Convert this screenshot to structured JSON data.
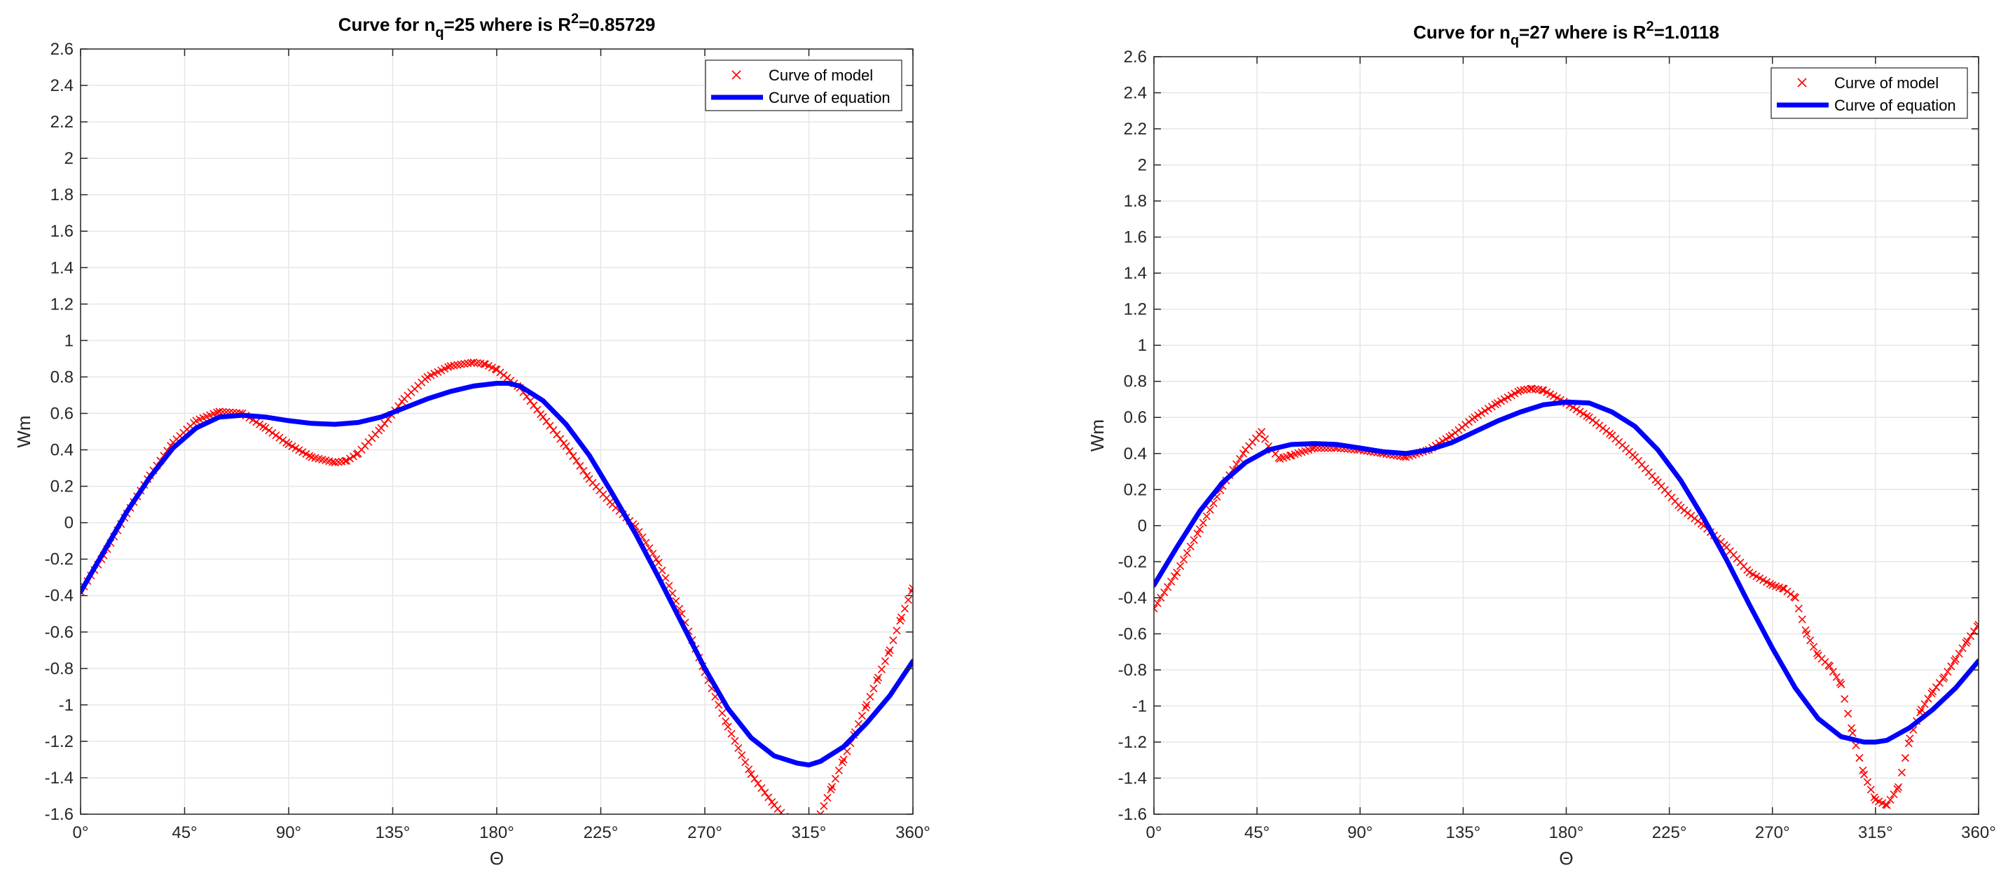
{
  "chart_data": [
    {
      "type": "line",
      "title_prefix": "Curve for n",
      "title_sub": "q",
      "title_mid": "=25 where is R",
      "title_sup": "2",
      "title_suffix": "=0.85729",
      "xlabel": "Θ",
      "ylabel": "Wm",
      "xlim": [
        0,
        360
      ],
      "ylim": [
        -1.6,
        2.6
      ],
      "xticks": [
        0,
        45,
        90,
        135,
        180,
        225,
        270,
        315,
        360
      ],
      "xtick_labels": [
        "0°",
        "45°",
        "90°",
        "135°",
        "180°",
        "225°",
        "270°",
        "315°",
        "360°"
      ],
      "yticks": [
        -1.6,
        -1.4,
        -1.2,
        -1,
        -0.8,
        -0.6,
        -0.4,
        -0.2,
        0,
        0.2,
        0.4,
        0.6,
        0.8,
        1,
        1.2,
        1.4,
        1.6,
        1.8,
        2,
        2.2,
        2.4,
        2.6
      ],
      "ytick_labels": [
        "-1.6",
        "-1.4",
        "-1.2",
        "-1",
        "-0.8",
        "-0.6",
        "-0.4",
        "-0.2",
        "0",
        "0.2",
        "0.4",
        "0.6",
        "0.8",
        "1",
        "1.2",
        "1.4",
        "1.6",
        "1.8",
        "2",
        "2.2",
        "2.4",
        "2.6"
      ],
      "grid": true,
      "legend_location": "top-right",
      "series": [
        {
          "name": "Curve of model",
          "style": "x-markers",
          "color": "#ff0000",
          "x": [
            0,
            10,
            20,
            30,
            40,
            50,
            60,
            70,
            80,
            90,
            100,
            110,
            115,
            120,
            130,
            140,
            150,
            160,
            170,
            175,
            180,
            190,
            200,
            210,
            220,
            230,
            240,
            250,
            260,
            270,
            280,
            290,
            300,
            305
          ],
          "y": [
            -0.38,
            -0.18,
            0.05,
            0.26,
            0.44,
            0.56,
            0.61,
            0.6,
            0.52,
            0.43,
            0.36,
            0.33,
            0.34,
            0.38,
            0.52,
            0.68,
            0.8,
            0.86,
            0.88,
            0.87,
            0.84,
            0.74,
            0.58,
            0.42,
            0.24,
            0.1,
            -0.02,
            -0.22,
            -0.5,
            -0.82,
            -1.12,
            -1.38,
            -1.55,
            -1.62
          ],
          "x_seg2": [
            320,
            325,
            330,
            335,
            340,
            345,
            350,
            355,
            360
          ],
          "y_seg2": [
            -1.6,
            -1.45,
            -1.3,
            -1.15,
            -1.0,
            -0.85,
            -0.7,
            -0.52,
            -0.36
          ]
        },
        {
          "name": "Curve of equation",
          "style": "line",
          "color": "#0000ff",
          "x": [
            0,
            10,
            20,
            30,
            40,
            50,
            60,
            70,
            80,
            90,
            100,
            110,
            120,
            130,
            140,
            150,
            160,
            170,
            180,
            185,
            190,
            200,
            210,
            220,
            230,
            240,
            250,
            260,
            270,
            280,
            290,
            300,
            310,
            315,
            320,
            330,
            340,
            350,
            360
          ],
          "y": [
            -0.38,
            -0.16,
            0.06,
            0.25,
            0.41,
            0.52,
            0.58,
            0.59,
            0.58,
            0.56,
            0.545,
            0.54,
            0.55,
            0.58,
            0.63,
            0.68,
            0.72,
            0.75,
            0.765,
            0.765,
            0.75,
            0.67,
            0.54,
            0.37,
            0.16,
            -0.06,
            -0.3,
            -0.55,
            -0.8,
            -1.02,
            -1.18,
            -1.28,
            -1.32,
            -1.33,
            -1.31,
            -1.23,
            -1.1,
            -0.95,
            -0.76
          ]
        }
      ]
    },
    {
      "type": "line",
      "title_prefix": "Curve for n",
      "title_sub": "q",
      "title_mid": "=27 where is R",
      "title_sup": "2",
      "title_suffix": "=1.0118",
      "xlabel": "Θ",
      "ylabel": "Wm",
      "xlim": [
        0,
        360
      ],
      "ylim": [
        -1.6,
        2.6
      ],
      "xticks": [
        0,
        45,
        90,
        135,
        180,
        225,
        270,
        315,
        360
      ],
      "xtick_labels": [
        "0°",
        "45°",
        "90°",
        "135°",
        "180°",
        "225°",
        "270°",
        "315°",
        "360°"
      ],
      "yticks": [
        -1.6,
        -1.4,
        -1.2,
        -1,
        -0.8,
        -0.6,
        -0.4,
        -0.2,
        0,
        0.2,
        0.4,
        0.6,
        0.8,
        1,
        1.2,
        1.4,
        1.6,
        1.8,
        2,
        2.2,
        2.4,
        2.6
      ],
      "ytick_labels": [
        "-1.6",
        "-1.4",
        "-1.2",
        "-1",
        "-0.8",
        "-0.6",
        "-0.4",
        "-0.2",
        "0",
        "0.2",
        "0.4",
        "0.6",
        "0.8",
        "1",
        "1.2",
        "1.4",
        "1.6",
        "1.8",
        "2",
        "2.2",
        "2.4",
        "2.6"
      ],
      "grid": true,
      "legend_location": "top-right",
      "series": [
        {
          "name": "Curve of model",
          "style": "x-markers",
          "color": "#ff0000",
          "x": [
            0,
            10,
            20,
            30,
            40,
            47,
            50,
            55,
            60,
            70,
            80,
            90,
            100,
            110,
            120,
            130,
            140,
            150,
            160,
            165,
            170,
            180,
            190,
            200,
            210,
            220,
            230,
            240,
            250,
            260,
            270,
            275,
            280,
            285,
            290,
            295,
            300,
            305,
            310,
            315,
            320,
            325,
            330,
            335,
            340,
            345,
            350,
            355,
            360
          ],
          "y": [
            -0.46,
            -0.26,
            -0.02,
            0.22,
            0.42,
            0.52,
            0.44,
            0.37,
            0.39,
            0.43,
            0.43,
            0.42,
            0.4,
            0.38,
            0.42,
            0.5,
            0.6,
            0.68,
            0.75,
            0.76,
            0.75,
            0.68,
            0.6,
            0.5,
            0.38,
            0.24,
            0.1,
            0.0,
            -0.12,
            -0.26,
            -0.33,
            -0.35,
            -0.4,
            -0.6,
            -0.72,
            -0.78,
            -0.88,
            -1.15,
            -1.38,
            -1.52,
            -1.55,
            -1.45,
            -1.18,
            -1.02,
            -0.92,
            -0.84,
            -0.74,
            -0.64,
            -0.55
          ]
        },
        {
          "name": "Curve of equation",
          "style": "line",
          "color": "#0000ff",
          "x": [
            0,
            10,
            20,
            30,
            40,
            50,
            60,
            70,
            80,
            90,
            100,
            110,
            120,
            130,
            140,
            150,
            160,
            170,
            180,
            190,
            200,
            210,
            220,
            230,
            240,
            250,
            260,
            270,
            280,
            290,
            300,
            310,
            315,
            320,
            330,
            340,
            350,
            360
          ],
          "y": [
            -0.33,
            -0.12,
            0.08,
            0.24,
            0.35,
            0.42,
            0.45,
            0.455,
            0.45,
            0.43,
            0.41,
            0.4,
            0.42,
            0.46,
            0.52,
            0.58,
            0.63,
            0.67,
            0.685,
            0.68,
            0.63,
            0.55,
            0.42,
            0.25,
            0.04,
            -0.19,
            -0.44,
            -0.68,
            -0.9,
            -1.07,
            -1.17,
            -1.2,
            -1.2,
            -1.19,
            -1.12,
            -1.02,
            -0.9,
            -0.75
          ]
        }
      ]
    }
  ]
}
